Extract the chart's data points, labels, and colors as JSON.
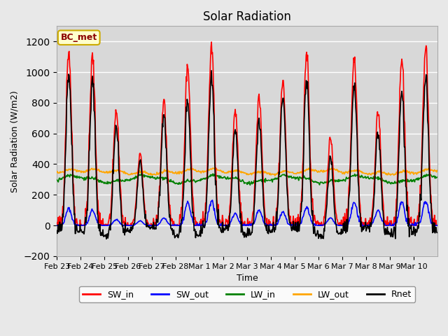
{
  "title": "Solar Radiation",
  "xlabel": "Time",
  "ylabel": "Solar Radiation (W/m2)",
  "ylim": [
    -200,
    1300
  ],
  "yticks": [
    -200,
    0,
    200,
    400,
    600,
    800,
    1000,
    1200
  ],
  "site_label": "BC_met",
  "background_color": "#e8e8e8",
  "plot_bg_color": "#d8d8d8",
  "legend_entries": [
    "SW_in",
    "SW_out",
    "LW_in",
    "LW_out",
    "Rnet"
  ],
  "legend_colors": [
    "red",
    "blue",
    "green",
    "orange",
    "black"
  ],
  "x_tick_labels": [
    "Feb 23",
    "Feb 24",
    "Feb 25",
    "Feb 26",
    "Feb 27",
    "Feb 28",
    "Mar 1",
    "Mar 2",
    "Mar 3",
    "Mar 4",
    "Mar 5",
    "Mar 6",
    "Mar 7",
    "Mar 8",
    "Mar 9",
    "Mar 10"
  ],
  "x_tick_positions": [
    0,
    1,
    2,
    3,
    4,
    5,
    6,
    7,
    8,
    9,
    10,
    11,
    12,
    13,
    14,
    15
  ],
  "n_days": 16,
  "hours_per_day": 24,
  "dt": 0.5,
  "SW_in_peaks": [
    1150,
    1100,
    750,
    460,
    820,
    1050,
    1170,
    750,
    850,
    930,
    1130,
    570,
    1120,
    740,
    1100,
    1170
  ],
  "SW_out_peaks": [
    110,
    100,
    40,
    30,
    50,
    150,
    160,
    80,
    100,
    90,
    120,
    50,
    150,
    100,
    150,
    160
  ],
  "LW_in_base": 295,
  "LW_out_base": 340
}
